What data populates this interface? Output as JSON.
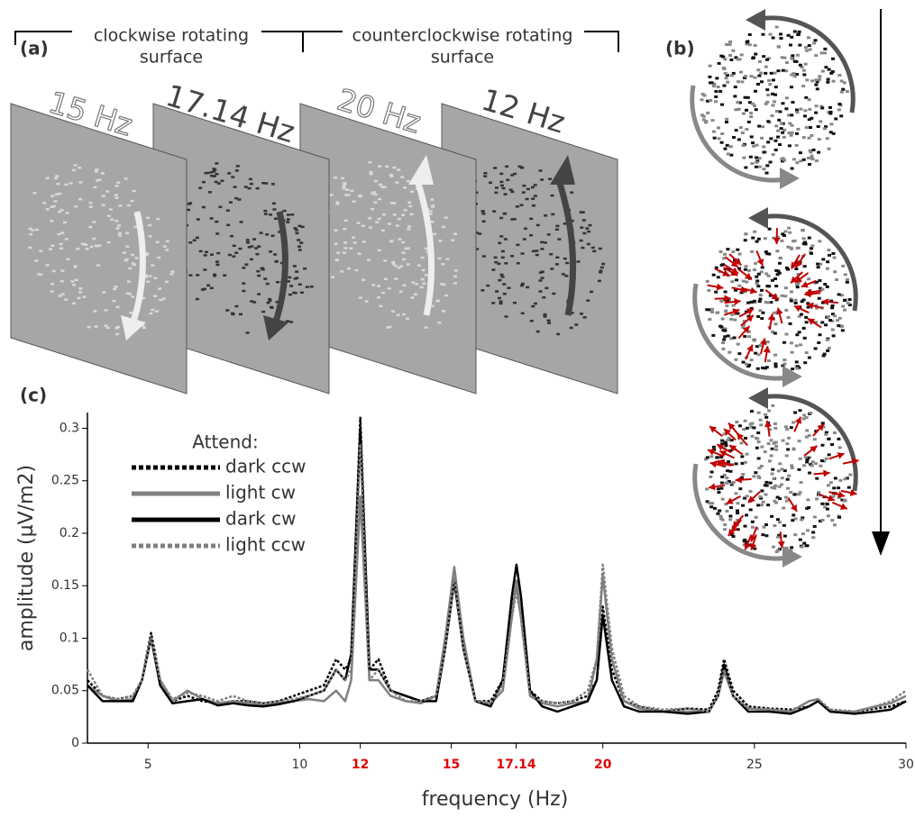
{
  "panel_a": {
    "label": "(a)",
    "cw_label": [
      "clockwise rotating",
      "surface"
    ],
    "ccw_label": [
      "counterclockwise rotating",
      "surface"
    ],
    "frequencies": [
      "15 Hz",
      "17.14 Hz",
      "20 Hz",
      "12 Hz"
    ]
  },
  "panel_b": {
    "label": "(b)"
  },
  "chart_data": {
    "type": "line",
    "panel_label": "(c)",
    "x_label": "frequency (Hz)",
    "y_label": "amplitude (µV/m2)",
    "legend_title": "Attend:",
    "xlim": [
      3,
      30
    ],
    "ylim": [
      0,
      0.315
    ],
    "xticks": [
      5,
      10,
      12,
      15,
      17.14,
      20,
      25,
      30
    ],
    "xtick_colors": [
      "#333333",
      "#333333",
      "#e00000",
      "#e00000",
      "#e00000",
      "#e00000",
      "#333333",
      "#333333"
    ],
    "yticks": [
      0,
      0.05,
      0.1,
      0.15,
      0.2,
      0.25,
      0.3
    ],
    "x": [
      3,
      3.5,
      4,
      4.5,
      4.8,
      5.1,
      5.4,
      5.8,
      6.3,
      6.8,
      7.3,
      7.8,
      8.3,
      8.8,
      9.3,
      9.8,
      10.3,
      10.8,
      11.2,
      11.5,
      11.7,
      12.0,
      12.3,
      12.6,
      13,
      13.5,
      14,
      14.5,
      14.8,
      15.1,
      15.4,
      15.8,
      16.3,
      16.7,
      17.0,
      17.15,
      17.3,
      17.6,
      18,
      18.5,
      19,
      19.5,
      19.8,
      20.0,
      20.3,
      20.7,
      21.2,
      22,
      22.8,
      23.5,
      23.8,
      24.0,
      24.3,
      24.8,
      25.5,
      26.2,
      26.8,
      27.1,
      27.5,
      28.3,
      29,
      29.5,
      30
    ],
    "series": [
      {
        "name": "dark ccw",
        "color": "#000000",
        "dashed": true,
        "values": [
          0.06,
          0.045,
          0.042,
          0.045,
          0.06,
          0.105,
          0.06,
          0.04,
          0.045,
          0.04,
          0.038,
          0.04,
          0.04,
          0.038,
          0.04,
          0.045,
          0.05,
          0.055,
          0.08,
          0.07,
          0.08,
          0.31,
          0.07,
          0.08,
          0.05,
          0.045,
          0.04,
          0.045,
          0.09,
          0.155,
          0.09,
          0.04,
          0.04,
          0.06,
          0.13,
          0.15,
          0.12,
          0.05,
          0.04,
          0.038,
          0.04,
          0.045,
          0.06,
          0.13,
          0.07,
          0.04,
          0.035,
          0.03,
          0.033,
          0.032,
          0.05,
          0.08,
          0.05,
          0.035,
          0.033,
          0.032,
          0.035,
          0.04,
          0.032,
          0.03,
          0.033,
          0.035,
          0.04
        ]
      },
      {
        "name": "light cw",
        "color": "#808080",
        "dashed": false,
        "values": [
          0.055,
          0.045,
          0.04,
          0.042,
          0.06,
          0.1,
          0.06,
          0.04,
          0.05,
          0.042,
          0.038,
          0.04,
          0.038,
          0.036,
          0.038,
          0.04,
          0.042,
          0.04,
          0.05,
          0.04,
          0.06,
          0.235,
          0.06,
          0.06,
          0.045,
          0.04,
          0.038,
          0.045,
          0.1,
          0.168,
          0.1,
          0.04,
          0.038,
          0.05,
          0.12,
          0.155,
          0.12,
          0.045,
          0.038,
          0.035,
          0.038,
          0.04,
          0.08,
          0.16,
          0.08,
          0.04,
          0.033,
          0.03,
          0.03,
          0.03,
          0.045,
          0.068,
          0.045,
          0.033,
          0.032,
          0.03,
          0.04,
          0.042,
          0.03,
          0.03,
          0.035,
          0.038,
          0.045
        ]
      },
      {
        "name": "dark cw",
        "color": "#000000",
        "dashed": false,
        "values": [
          0.055,
          0.04,
          0.04,
          0.04,
          0.06,
          0.1,
          0.055,
          0.038,
          0.04,
          0.042,
          0.036,
          0.038,
          0.036,
          0.035,
          0.037,
          0.04,
          0.045,
          0.05,
          0.07,
          0.06,
          0.085,
          0.3,
          0.07,
          0.07,
          0.05,
          0.045,
          0.04,
          0.04,
          0.09,
          0.155,
          0.09,
          0.04,
          0.035,
          0.06,
          0.14,
          0.17,
          0.14,
          0.05,
          0.035,
          0.03,
          0.035,
          0.04,
          0.06,
          0.122,
          0.06,
          0.035,
          0.03,
          0.03,
          0.028,
          0.03,
          0.045,
          0.075,
          0.045,
          0.03,
          0.03,
          0.028,
          0.035,
          0.04,
          0.03,
          0.028,
          0.03,
          0.032,
          0.04
        ]
      },
      {
        "name": "light ccw",
        "color": "#808080",
        "dashed": true,
        "values": [
          0.07,
          0.045,
          0.042,
          0.045,
          0.06,
          0.1,
          0.06,
          0.042,
          0.048,
          0.045,
          0.04,
          0.045,
          0.04,
          0.038,
          0.04,
          0.042,
          0.045,
          0.05,
          0.07,
          0.06,
          0.07,
          0.285,
          0.06,
          0.07,
          0.05,
          0.04,
          0.04,
          0.045,
          0.09,
          0.158,
          0.09,
          0.04,
          0.038,
          0.055,
          0.12,
          0.145,
          0.12,
          0.045,
          0.04,
          0.038,
          0.04,
          0.05,
          0.08,
          0.17,
          0.09,
          0.045,
          0.035,
          0.032,
          0.033,
          0.03,
          0.045,
          0.07,
          0.045,
          0.033,
          0.032,
          0.03,
          0.04,
          0.042,
          0.032,
          0.03,
          0.035,
          0.04,
          0.05
        ]
      }
    ]
  }
}
